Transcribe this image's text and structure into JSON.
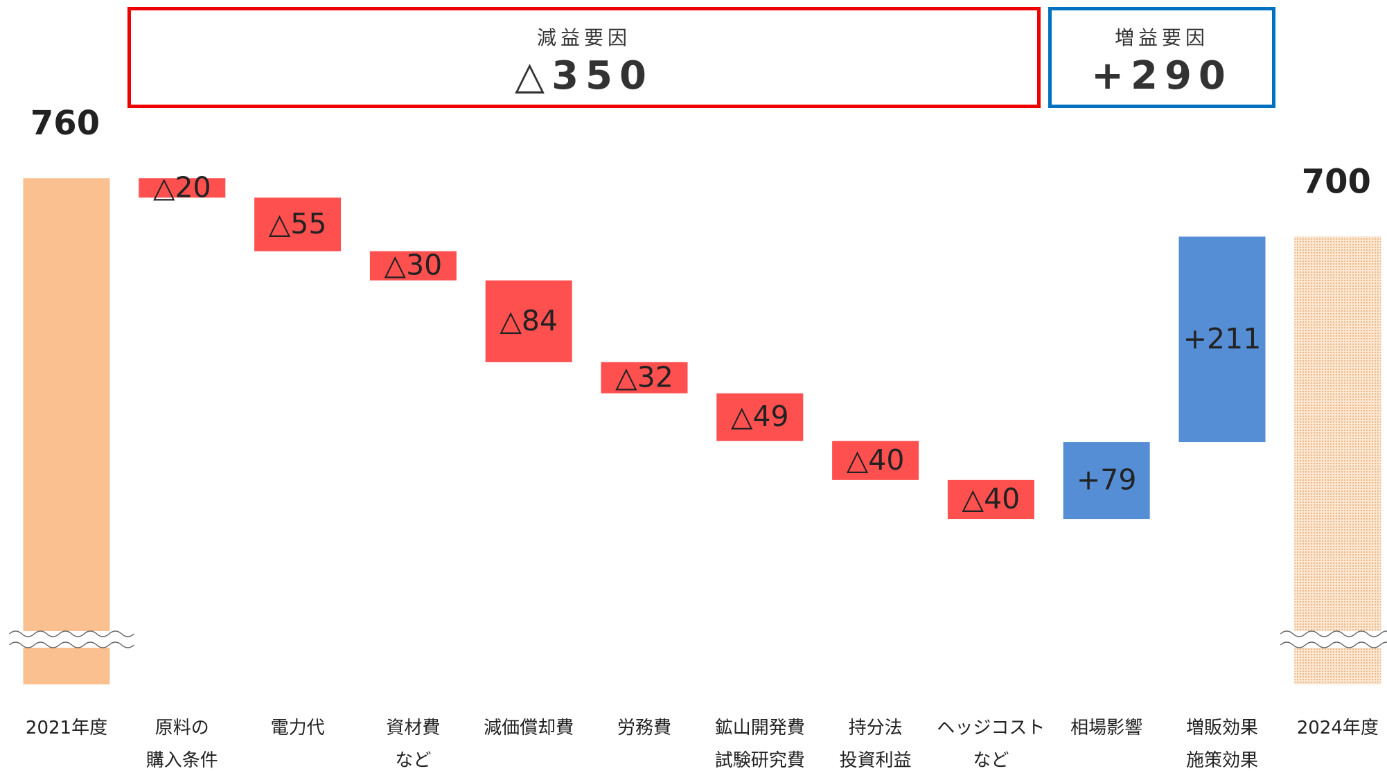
{
  "chart_data": {
    "type": "waterfall",
    "categories": [
      "2021年度",
      "原料の\n購入条件",
      "電力代",
      "資材費\nなど",
      "減価償却費",
      "労務費",
      "鉱山開発費\n試験研究費",
      "持分法\n投資利益",
      "ヘッジコスト\nなど",
      "相場影響",
      "増販効果\n施策効果",
      "2024年度"
    ],
    "measures": [
      "absolute",
      "relative",
      "relative",
      "relative",
      "relative",
      "relative",
      "relative",
      "relative",
      "relative",
      "relative",
      "relative",
      "total"
    ],
    "values": [
      760,
      -20,
      -55,
      -30,
      -84,
      -32,
      -49,
      -40,
      -40,
      79,
      211,
      700
    ],
    "value_labels": [
      "760",
      "△20",
      "△55",
      "△30",
      "△84",
      "△32",
      "△49",
      "△40",
      "△40",
      "+79",
      "+211",
      "700"
    ],
    "colors": {
      "absolute": "#fac090",
      "decrease": "#ff5050",
      "increase": "#558ed5",
      "total": "#f6cfa8"
    },
    "ylim": [
      240,
      800
    ],
    "axis_break": true,
    "annotations": [
      {
        "title": "減益要因",
        "total": "△350",
        "color": "#ee0000"
      },
      {
        "title": "増益要因",
        "total": "+290",
        "color": "#0070c0"
      }
    ]
  }
}
